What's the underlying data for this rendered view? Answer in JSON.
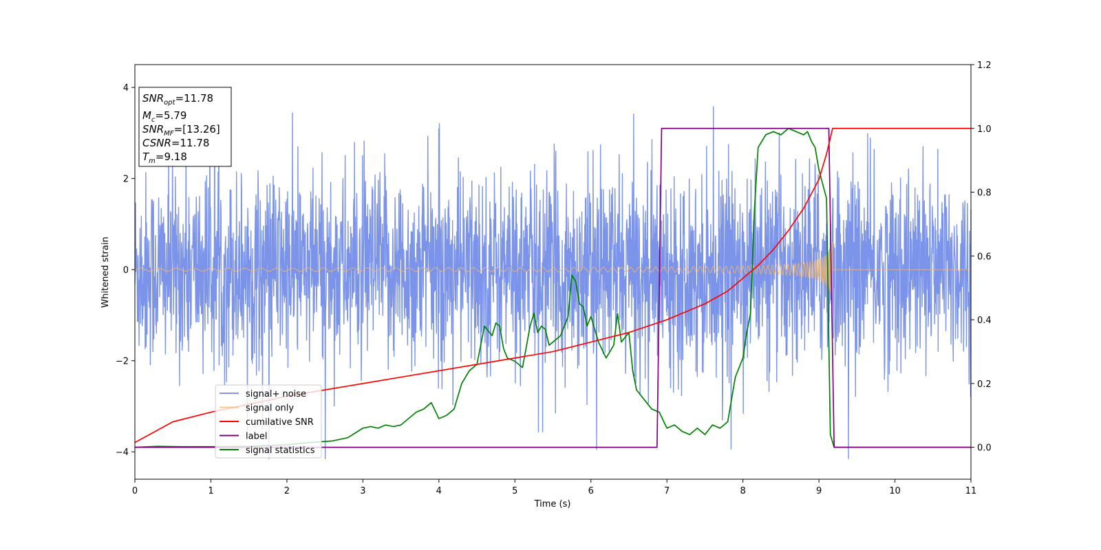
{
  "chart_data": {
    "type": "line",
    "xlabel": "Time (s)",
    "ylabel": "Whitened strain",
    "xlim": [
      0,
      11
    ],
    "ylim": [
      -4.6,
      4.5
    ],
    "y2lim": [
      -0.1,
      1.2
    ],
    "xticks": [
      "0",
      "1",
      "2",
      "3",
      "4",
      "5",
      "6",
      "7",
      "8",
      "9",
      "10",
      "11"
    ],
    "yticks": [
      "−4",
      "−2",
      "0",
      "2",
      "4"
    ],
    "y2ticks": [
      "0.0",
      "0.2",
      "0.4",
      "0.6",
      "0.8",
      "1.0",
      "1.2"
    ],
    "grid": false,
    "legend_position": "lower-left",
    "info_box": {
      "lines": [
        {
          "main": "SNR",
          "sub": "opt",
          "rest": "=11.78"
        },
        {
          "main": "M",
          "sub": "c",
          "rest": "=5.79"
        },
        {
          "main": "SNR",
          "sub": "MF",
          "rest": "=[13.26]"
        },
        {
          "main": "CSNR",
          "sub": "",
          "rest": "=11.78"
        },
        {
          "main": "T",
          "sub": "m",
          "rest": "=9.18"
        }
      ]
    },
    "series": [
      {
        "name": "signal+ noise",
        "axis": "left",
        "color": "#7b93e8",
        "description": "whitened noise, amplitude ~±2.5 with spikes to ±4"
      },
      {
        "name": "signal only",
        "axis": "left",
        "color": "#f5b56b",
        "description": "chirp growing from ~0.05 to ~1.0 amplitude, merger at t=9.18"
      },
      {
        "name": "cumilative SNR",
        "axis": "right",
        "color": "#ff0000",
        "x": [
          0,
          0.5,
          1,
          1.5,
          2,
          2.5,
          3,
          3.5,
          4,
          4.5,
          5,
          5.5,
          6,
          6.5,
          7,
          7.5,
          7.8,
          8,
          8.2,
          8.4,
          8.6,
          8.8,
          9,
          9.1,
          9.18,
          9.2,
          11
        ],
        "y": [
          0.015,
          0.08,
          0.11,
          0.135,
          0.16,
          0.18,
          0.2,
          0.22,
          0.24,
          0.26,
          0.28,
          0.3,
          0.33,
          0.36,
          0.4,
          0.45,
          0.49,
          0.53,
          0.57,
          0.62,
          0.68,
          0.75,
          0.84,
          0.92,
          1.0,
          1.0,
          1.0
        ]
      },
      {
        "name": "label",
        "axis": "right",
        "color": "#800080",
        "x": [
          0,
          6.87,
          6.93,
          9.13,
          9.2,
          11
        ],
        "y": [
          0,
          0,
          1,
          1,
          0,
          0
        ]
      },
      {
        "name": "signal statistics",
        "axis": "right",
        "color": "#008000",
        "x": [
          0,
          0.3,
          0.6,
          1,
          1.5,
          2,
          2.3,
          2.6,
          2.8,
          2.9,
          3.0,
          3.1,
          3.2,
          3.3,
          3.4,
          3.5,
          3.6,
          3.7,
          3.8,
          3.85,
          3.9,
          4.0,
          4.1,
          4.2,
          4.3,
          4.4,
          4.5,
          4.6,
          4.7,
          4.75,
          4.8,
          4.85,
          4.9,
          5.0,
          5.1,
          5.2,
          5.25,
          5.3,
          5.35,
          5.4,
          5.45,
          5.5,
          5.6,
          5.7,
          5.75,
          5.8,
          5.85,
          5.9,
          5.95,
          6.0,
          6.1,
          6.2,
          6.3,
          6.35,
          6.4,
          6.5,
          6.55,
          6.6,
          6.7,
          6.8,
          6.9,
          7.0,
          7.1,
          7.2,
          7.3,
          7.4,
          7.5,
          7.6,
          7.7,
          7.8,
          7.9,
          8.0,
          8.05,
          8.1,
          8.15,
          8.2,
          8.25,
          8.3,
          8.4,
          8.5,
          8.6,
          8.7,
          8.8,
          8.85,
          8.9,
          8.95,
          9.0,
          9.1,
          9.15,
          9.2,
          9.3,
          11
        ],
        "y": [
          0.0,
          0.003,
          0.002,
          0.002,
          0.003,
          0.008,
          0.015,
          0.02,
          0.03,
          0.045,
          0.06,
          0.065,
          0.06,
          0.07,
          0.065,
          0.07,
          0.09,
          0.11,
          0.12,
          0.13,
          0.14,
          0.09,
          0.1,
          0.12,
          0.2,
          0.24,
          0.26,
          0.38,
          0.35,
          0.39,
          0.38,
          0.31,
          0.28,
          0.27,
          0.25,
          0.38,
          0.42,
          0.36,
          0.38,
          0.37,
          0.32,
          0.33,
          0.35,
          0.41,
          0.54,
          0.52,
          0.45,
          0.44,
          0.38,
          0.41,
          0.33,
          0.28,
          0.32,
          0.42,
          0.33,
          0.36,
          0.24,
          0.18,
          0.15,
          0.12,
          0.11,
          0.06,
          0.07,
          0.05,
          0.04,
          0.06,
          0.04,
          0.07,
          0.06,
          0.08,
          0.22,
          0.28,
          0.36,
          0.42,
          0.74,
          0.94,
          0.96,
          0.98,
          0.99,
          0.98,
          1.0,
          0.99,
          0.98,
          0.99,
          0.96,
          0.94,
          0.87,
          0.78,
          0.04,
          0.0,
          0.0,
          0.0
        ]
      }
    ]
  }
}
